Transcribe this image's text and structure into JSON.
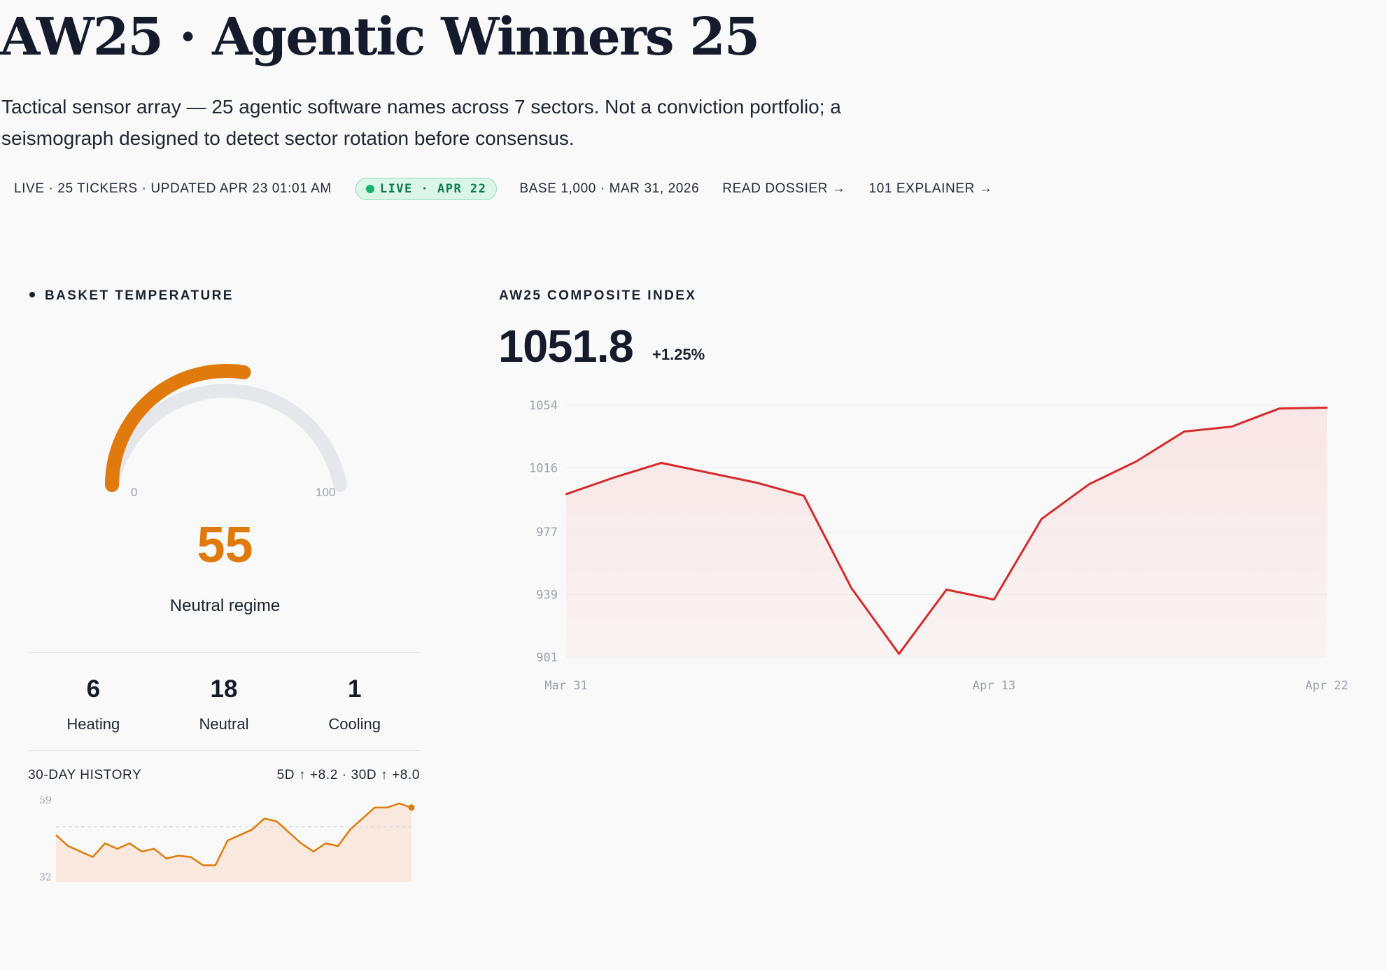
{
  "header": {
    "title": "AW25 · Agentic Winners 25",
    "subtitle": "Tactical sensor array — 25 agentic software names across 7 sectors. Not a conviction portfolio; a seismograph designed to detect sector rotation before consensus."
  },
  "meta": {
    "status": "LIVE · 25 TICKERS · UPDATED APR 23 01:01 AM",
    "live_badge": "LIVE · APR 22",
    "base": "BASE 1,000 · MAR 31, 2026",
    "dossier_link": "READ DOSSIER →",
    "explainer_link": "101 EXPLAINER →"
  },
  "temperature": {
    "label": "BASKET TEMPERATURE",
    "value": 55,
    "display": "55",
    "min_label": "0",
    "max_label": "100",
    "regime": "Neutral regime",
    "accent": "#e07a0c",
    "track": "#e5e7eb",
    "counts": [
      {
        "value": "6",
        "label": "Heating"
      },
      {
        "value": "18",
        "label": "Neutral"
      },
      {
        "value": "1",
        "label": "Cooling"
      }
    ]
  },
  "history": {
    "label": "30-DAY HISTORY",
    "summary": "5D ↑ +8.2 · 30D ↑ +8.0",
    "y_max_label": "59",
    "y_min_label": "32",
    "ylim": [
      32,
      59
    ],
    "reference": 51,
    "values": [
      48,
      44,
      42,
      40,
      45,
      43,
      45,
      42,
      43,
      39.5,
      40.5,
      40,
      37,
      37,
      46,
      48,
      50,
      54,
      53,
      49,
      45,
      42,
      45,
      44,
      50,
      54,
      58,
      58,
      59.5,
      58
    ]
  },
  "index": {
    "label": "AW25 COMPOSITE INDEX",
    "value": "1051.8",
    "change": "+1.25%"
  },
  "chart_data": {
    "type": "area",
    "title": "AW25 COMPOSITE INDEX",
    "xlabel": "",
    "ylabel": "",
    "x": [
      "Mar 31",
      "Apr 1",
      "Apr 2",
      "Apr 3",
      "Apr 6",
      "Apr 7",
      "Apr 8",
      "Apr 9",
      "Apr 10",
      "Apr 13",
      "Apr 14",
      "Apr 15",
      "Apr 16",
      "Apr 17",
      "Apr 20",
      "Apr 21",
      "Apr 22"
    ],
    "values": [
      1000,
      1010,
      1019,
      1013,
      1007,
      999,
      943,
      903,
      942,
      936,
      985,
      1006,
      1020,
      1038,
      1041,
      1052,
      1052.5
    ],
    "y_ticks": [
      "1054",
      "1016",
      "977",
      "939",
      "901"
    ],
    "x_ticks": [
      "Mar 31",
      "Apr 13",
      "Apr 22"
    ],
    "ylim": [
      901,
      1054
    ],
    "grid": true,
    "line_color": "#d62b2b",
    "fill_color": "#f9e3e3"
  }
}
